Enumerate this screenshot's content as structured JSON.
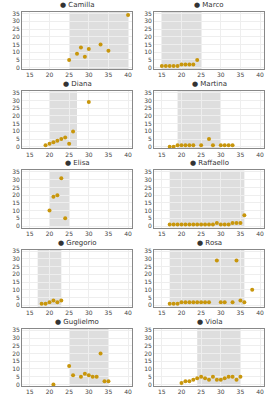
{
  "chart_data": [
    {
      "type": "scatter",
      "title": "● Camilla",
      "x": [
        25,
        27,
        28,
        29,
        30,
        33,
        35,
        40
      ],
      "values": [
        5,
        9,
        13,
        7,
        12,
        15,
        11,
        34
      ],
      "shade": [
        25,
        40
      ],
      "color": "#c8960c",
      "xlim": [
        13,
        41
      ],
      "ylim": [
        -1,
        36
      ],
      "xticks": [
        15,
        20,
        25,
        30,
        35,
        40
      ],
      "yticks": [
        0,
        5,
        10,
        15,
        20,
        25,
        30,
        35
      ],
      "grid": true
    },
    {
      "type": "scatter",
      "title": "● Marco",
      "x": [
        15,
        16,
        17,
        18,
        19,
        20,
        21,
        22,
        23,
        24
      ],
      "values": [
        1,
        1,
        1,
        1,
        1,
        2,
        2,
        2,
        2,
        5
      ],
      "shade": [
        15,
        25
      ],
      "color": "#c8960c",
      "xlim": [
        13,
        41
      ],
      "ylim": [
        -1,
        36
      ],
      "xticks": [
        15,
        20,
        25,
        30,
        35,
        40
      ],
      "yticks": [
        0,
        5,
        10,
        15,
        20,
        25,
        30,
        35
      ],
      "grid": true
    },
    {
      "type": "scatter",
      "title": "● Diana",
      "x": [
        19,
        20,
        21,
        22,
        23,
        24,
        25,
        26,
        30
      ],
      "values": [
        1,
        2,
        3,
        4,
        5,
        6,
        2,
        10,
        29
      ],
      "shade": [
        20,
        27
      ],
      "color": "#c8960c",
      "xlim": [
        13,
        41
      ],
      "ylim": [
        -1,
        36
      ],
      "xticks": [
        15,
        20,
        25,
        30,
        35,
        40
      ],
      "yticks": [
        0,
        5,
        10,
        15,
        20,
        25,
        30,
        35
      ],
      "grid": true
    },
    {
      "type": "scatter",
      "title": "● Martina",
      "x": [
        17,
        18,
        19,
        20,
        21,
        22,
        23,
        25,
        27,
        28,
        30,
        31,
        32,
        33
      ],
      "values": [
        0,
        0,
        1,
        1,
        1,
        1,
        1,
        1,
        5,
        1,
        1,
        1,
        1,
        1
      ],
      "shade": [
        19,
        30
      ],
      "color": "#c8960c",
      "xlim": [
        13,
        41
      ],
      "ylim": [
        -1,
        36
      ],
      "xticks": [
        15,
        20,
        25,
        30,
        35,
        40
      ],
      "yticks": [
        0,
        5,
        10,
        15,
        20,
        25,
        30,
        35
      ],
      "grid": true
    },
    {
      "type": "scatter",
      "title": "● Elisa",
      "x": [
        20,
        21,
        22,
        23,
        24
      ],
      "values": [
        10,
        19,
        20,
        31,
        5
      ],
      "shade": [
        20,
        25
      ],
      "color": "#c8960c",
      "xlim": [
        13,
        41
      ],
      "ylim": [
        -1,
        36
      ],
      "xticks": [
        15,
        20,
        25,
        30,
        35,
        40
      ],
      "yticks": [
        0,
        5,
        10,
        15,
        20,
        25,
        30,
        35
      ],
      "grid": true
    },
    {
      "type": "scatter",
      "title": "● Raffaello",
      "x": [
        17,
        18,
        19,
        20,
        21,
        22,
        23,
        24,
        25,
        26,
        27,
        28,
        29,
        30,
        31,
        32,
        33,
        34,
        35,
        36
      ],
      "values": [
        1,
        1,
        1,
        1,
        1,
        1,
        1,
        1,
        1,
        1,
        1,
        1,
        2,
        1,
        1,
        1,
        2,
        2,
        2,
        7
      ],
      "shade": [
        17,
        36
      ],
      "color": "#c8960c",
      "xlim": [
        13,
        41
      ],
      "ylim": [
        -1,
        36
      ],
      "xticks": [
        15,
        20,
        25,
        30,
        35,
        40
      ],
      "yticks": [
        0,
        5,
        10,
        15,
        20,
        25,
        30,
        35
      ],
      "grid": true
    },
    {
      "type": "scatter",
      "title": "● Gregorio",
      "x": [
        18,
        19,
        20,
        21,
        22,
        23
      ],
      "values": [
        1,
        1,
        2,
        3,
        2,
        3
      ],
      "shade": [
        17,
        23
      ],
      "color": "#c8960c",
      "xlim": [
        13,
        41
      ],
      "ylim": [
        -1,
        36
      ],
      "xticks": [
        15,
        20,
        25,
        30,
        35,
        40
      ],
      "yticks": [
        0,
        5,
        10,
        15,
        20,
        25,
        30,
        35
      ],
      "grid": true
    },
    {
      "type": "scatter",
      "title": "● Rosa",
      "x": [
        17,
        18,
        19,
        20,
        21,
        22,
        23,
        24,
        25,
        26,
        27,
        29,
        30,
        31,
        33,
        34,
        35,
        36,
        38
      ],
      "values": [
        1,
        1,
        1,
        2,
        2,
        2,
        2,
        2,
        2,
        2,
        2,
        29,
        2,
        2,
        2,
        29,
        3,
        2,
        10
      ],
      "shade": [
        17,
        36
      ],
      "color": "#c8960c",
      "xlim": [
        13,
        41
      ],
      "ylim": [
        -1,
        36
      ],
      "xticks": [
        15,
        20,
        25,
        30,
        35,
        40
      ],
      "yticks": [
        0,
        5,
        10,
        15,
        20,
        25,
        30,
        35
      ],
      "grid": true
    },
    {
      "type": "scatter",
      "title": "● Guglielmo",
      "x": [
        21,
        25,
        26,
        28,
        29,
        30,
        31,
        32,
        33,
        34,
        35
      ],
      "values": [
        0,
        12,
        6,
        5,
        7,
        6,
        5,
        5,
        20,
        2,
        2
      ],
      "shade": [
        25,
        35
      ],
      "color": "#c8960c",
      "xlim": [
        13,
        41
      ],
      "ylim": [
        -1,
        36
      ],
      "xticks": [
        15,
        20,
        25,
        30,
        35,
        40
      ],
      "yticks": [
        0,
        5,
        10,
        15,
        20,
        25,
        30,
        35
      ],
      "grid": true
    },
    {
      "type": "scatter",
      "title": "● Viola",
      "x": [
        20,
        21,
        22,
        23,
        24,
        25,
        26,
        27,
        28,
        29,
        30,
        31,
        32,
        33,
        34,
        35
      ],
      "values": [
        1,
        2,
        2,
        3,
        4,
        5,
        4,
        3,
        5,
        3,
        3,
        4,
        5,
        5,
        3,
        5
      ],
      "shade": [
        24,
        35
      ],
      "color": "#c8960c",
      "xlim": [
        13,
        41
      ],
      "ylim": [
        -1,
        36
      ],
      "xticks": [
        15,
        20,
        25,
        30,
        35,
        40
      ],
      "yticks": [
        0,
        5,
        10,
        15,
        20,
        25,
        30,
        35
      ],
      "grid": true
    }
  ]
}
